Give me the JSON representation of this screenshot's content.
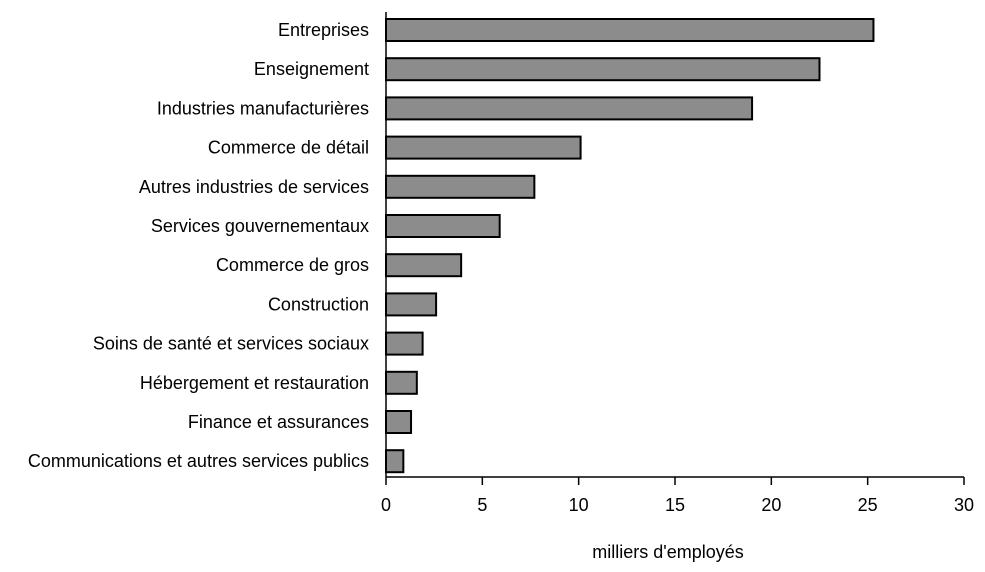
{
  "chart_data": {
    "type": "bar",
    "orientation": "horizontal",
    "title": "",
    "xlabel": "milliers d'employés",
    "ylabel": "",
    "xlim": [
      0,
      30
    ],
    "x_ticks": [
      0,
      5,
      10,
      15,
      20,
      25,
      30
    ],
    "grid": false,
    "legend": "none",
    "bar_color": "#8c8c8c",
    "bar_outline_color": "#000000",
    "categories": [
      "Entreprises",
      "Enseignement",
      "Industries manufacturières",
      "Commerce de détail",
      "Autres industries de services",
      "Services gouvernementaux",
      "Commerce de gros",
      "Construction",
      "Soins de santé et services sociaux",
      "Hébergement et restauration",
      "Finance et assurances",
      "Communications et autres services publics"
    ],
    "values": [
      25.3,
      22.5,
      19.0,
      10.1,
      7.7,
      5.9,
      3.9,
      2.6,
      1.9,
      1.6,
      1.3,
      0.9
    ]
  }
}
